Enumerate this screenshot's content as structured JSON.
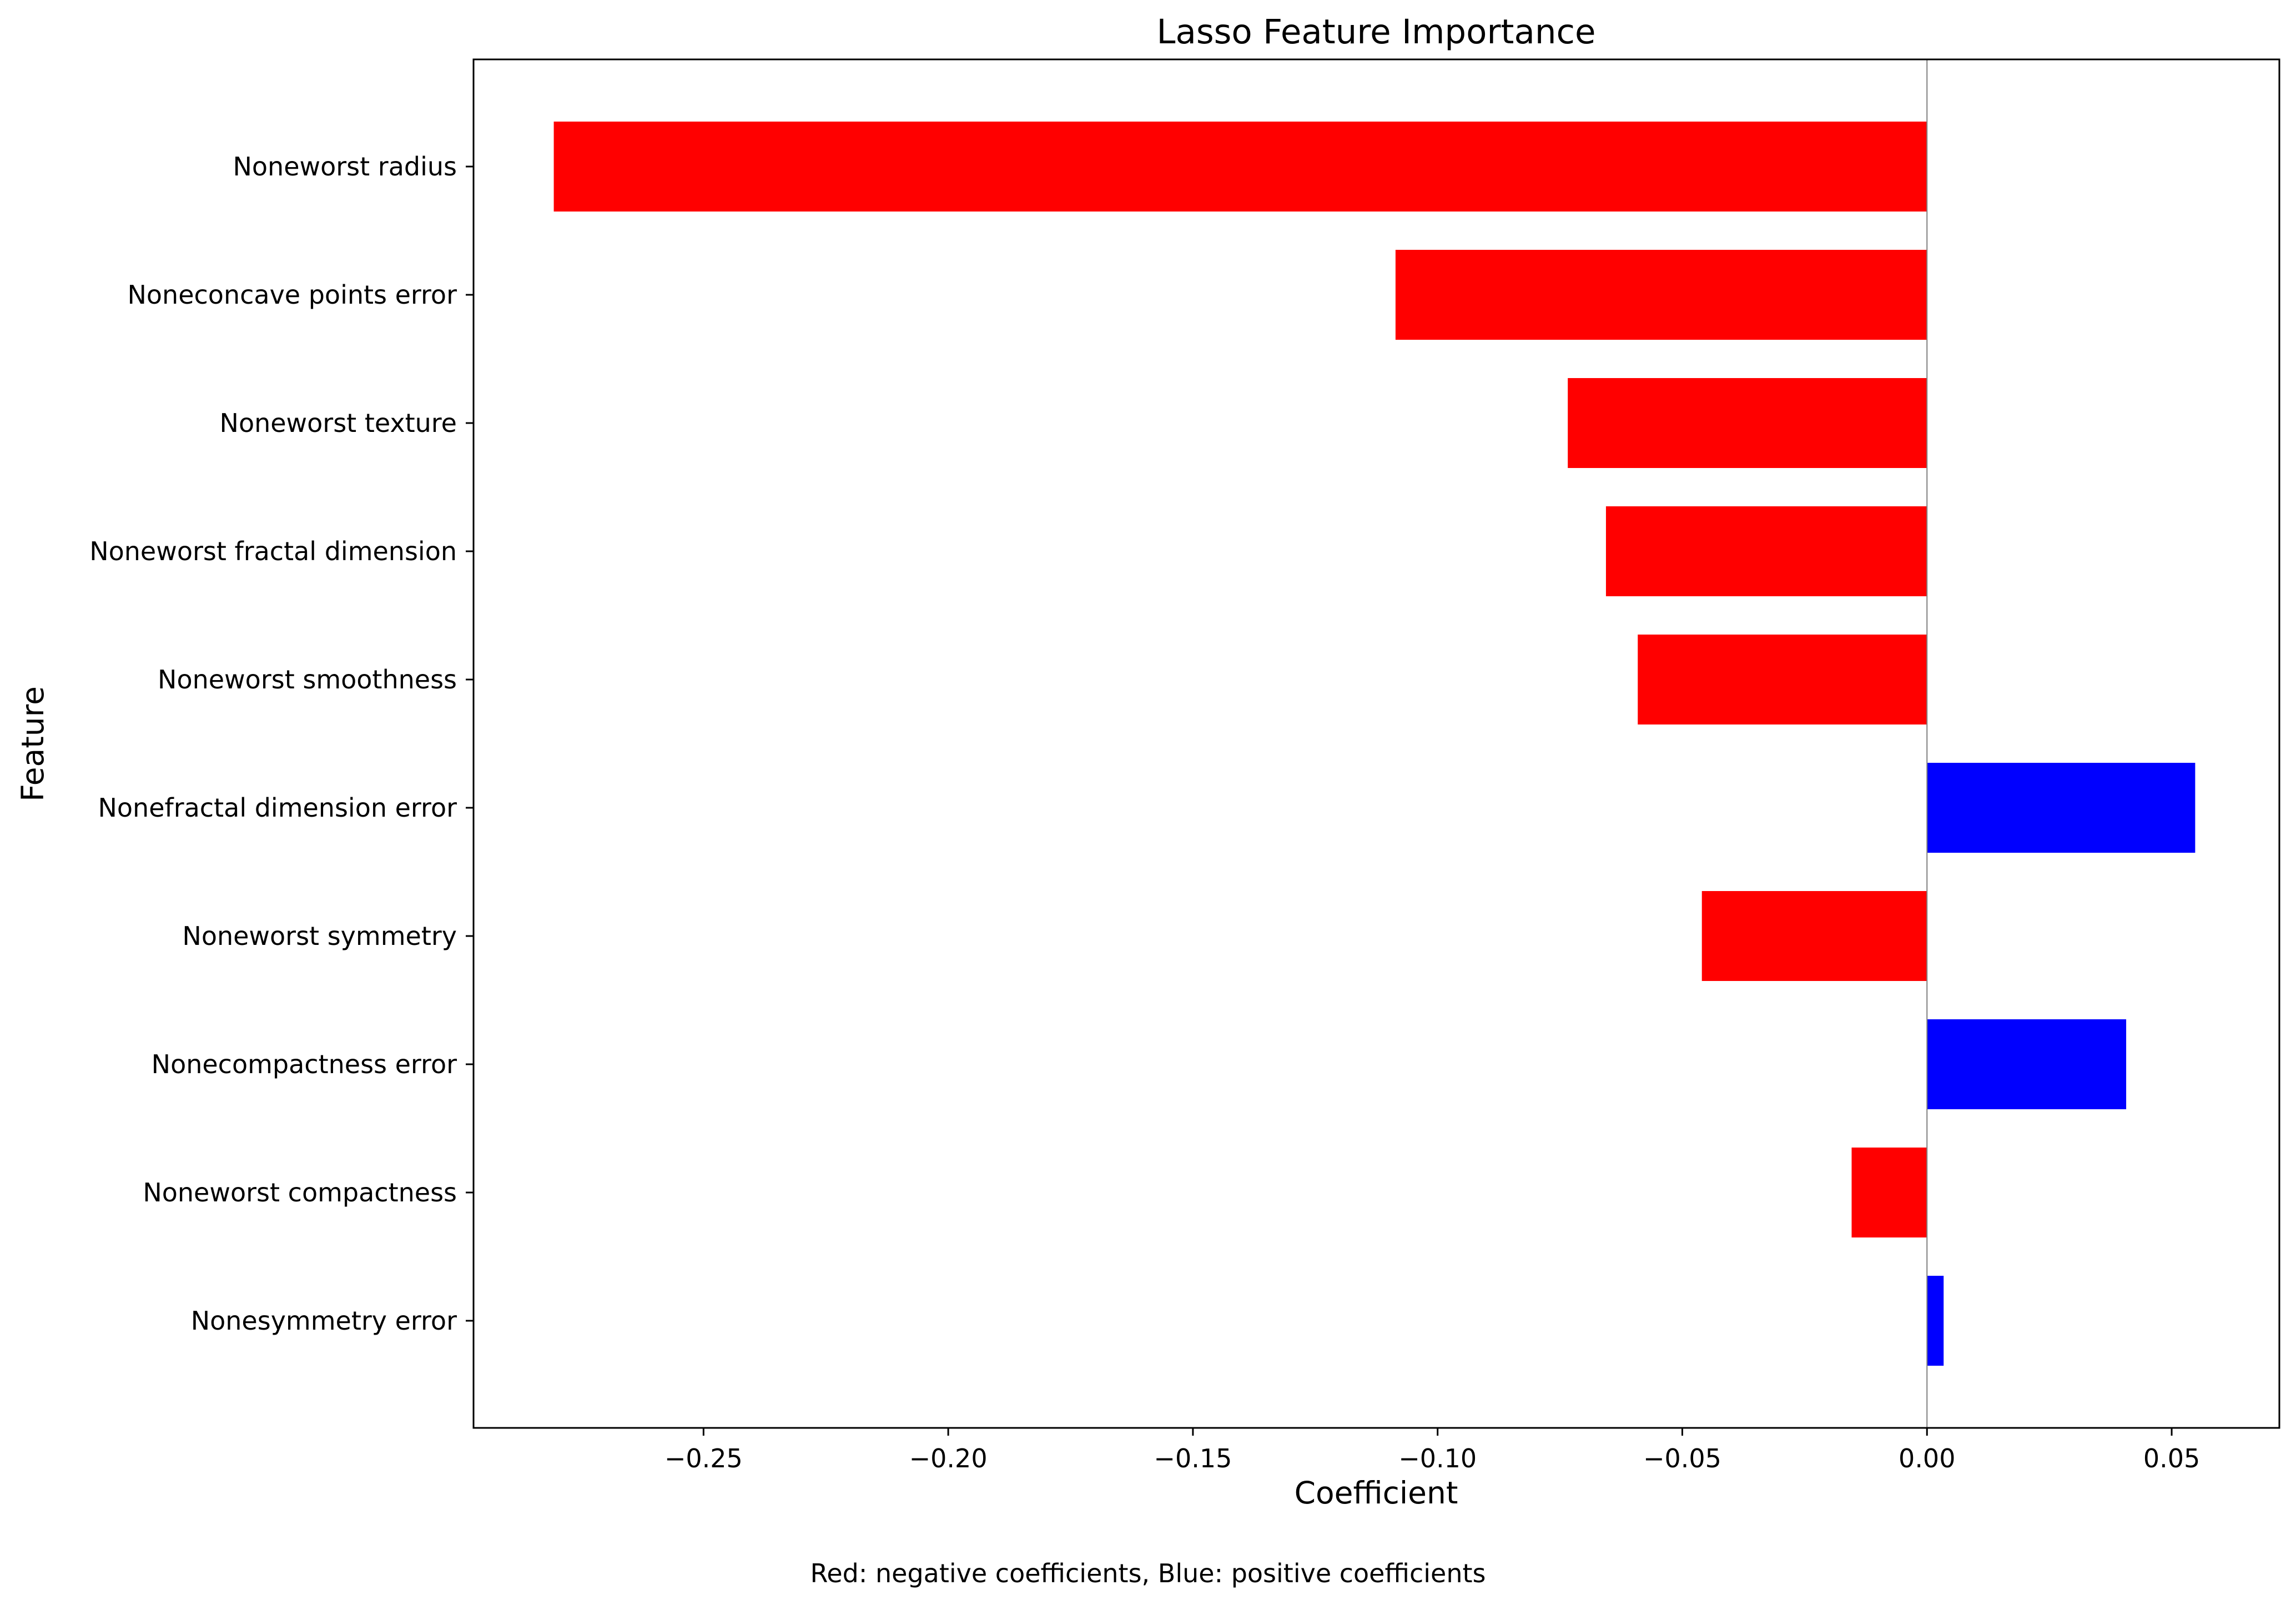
{
  "chart_data": {
    "type": "bar",
    "orientation": "horizontal",
    "title": "Lasso Feature Importance",
    "xlabel": "Coefficient",
    "ylabel": "Feature",
    "caption": "Red: negative coefficients, Blue: positive coefficients",
    "xlim": [
      -0.297,
      0.072
    ],
    "xticks": [
      -0.25,
      -0.2,
      -0.15,
      -0.1,
      -0.05,
      0.0,
      0.05
    ],
    "xtick_labels": [
      "−0.25",
      "−0.20",
      "−0.15",
      "−0.10",
      "−0.05",
      "0.00",
      "0.05"
    ],
    "categories": [
      "Noneworst radius",
      "Noneconcave points error",
      "Noneworst texture",
      "Noneworst fractal dimension",
      "Noneworst smoothness",
      "Nonefractal dimension error",
      "Noneworst symmetry",
      "Nonecompactness error",
      "Noneworst compactness",
      "Nonesymmetry error"
    ],
    "values": [
      -0.2806,
      -0.1086,
      -0.0734,
      -0.0656,
      -0.0591,
      0.0548,
      -0.046,
      0.0407,
      -0.0154,
      0.0034
    ],
    "colors": {
      "negative": "#ff0000",
      "positive": "#0000ff",
      "zero_line": "#808080"
    },
    "grid": false
  }
}
